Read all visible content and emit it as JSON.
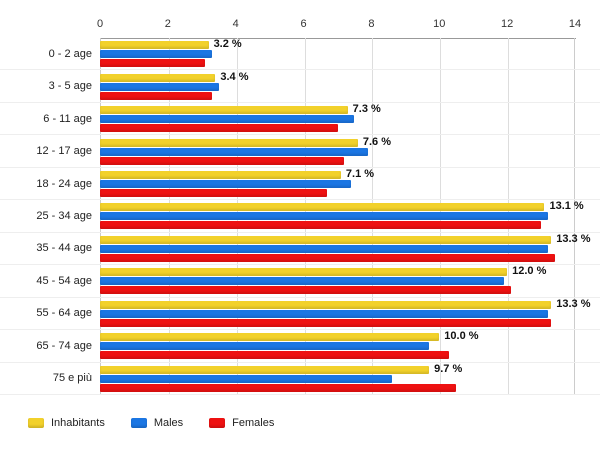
{
  "chart_data": {
    "type": "bar",
    "orientation": "horizontal",
    "title": "",
    "xlabel": "",
    "ylabel": "",
    "xlim": [
      0,
      14
    ],
    "x_ticks": [
      0,
      2,
      4,
      6,
      8,
      10,
      12,
      14
    ],
    "grid": true,
    "legend_position": "bottom-left",
    "categories": [
      "0 - 2 age",
      "3 - 5 age",
      "6 - 11 age",
      "12 - 17 age",
      "18 - 24 age",
      "25 - 34 age",
      "35 - 44 age",
      "45 - 54 age",
      "55 - 64 age",
      "65 - 74 age",
      "75 e più"
    ],
    "series": [
      {
        "name": "Inhabitants",
        "color": "#F2D12B",
        "values": [
          3.2,
          3.4,
          7.3,
          7.6,
          7.1,
          13.1,
          13.3,
          12.0,
          13.3,
          10.0,
          9.7
        ]
      },
      {
        "name": "Males",
        "color": "#1B76E3",
        "values": [
          3.3,
          3.5,
          7.5,
          7.9,
          7.4,
          13.2,
          13.2,
          11.9,
          13.2,
          9.7,
          8.6
        ]
      },
      {
        "name": "Females",
        "color": "#EE1111",
        "values": [
          3.1,
          3.3,
          7.0,
          7.2,
          6.7,
          13.0,
          13.4,
          12.1,
          13.3,
          10.3,
          10.5
        ]
      }
    ],
    "value_labels": [
      "3.2 %",
      "3.4 %",
      "7.3 %",
      "7.6 %",
      "7.1 %",
      "13.1 %",
      "13.3 %",
      "12.0 %",
      "13.3 %",
      "10.0 %",
      "9.7 %"
    ]
  },
  "legend": {
    "items": [
      {
        "label": "Inhabitants",
        "color": "#F2D12B"
      },
      {
        "label": "Males",
        "color": "#1B76E3"
      },
      {
        "label": "Females",
        "color": "#EE1111"
      }
    ]
  },
  "colors": {
    "grid": "#dddddd",
    "axis": "#999999",
    "text": "#222222"
  }
}
